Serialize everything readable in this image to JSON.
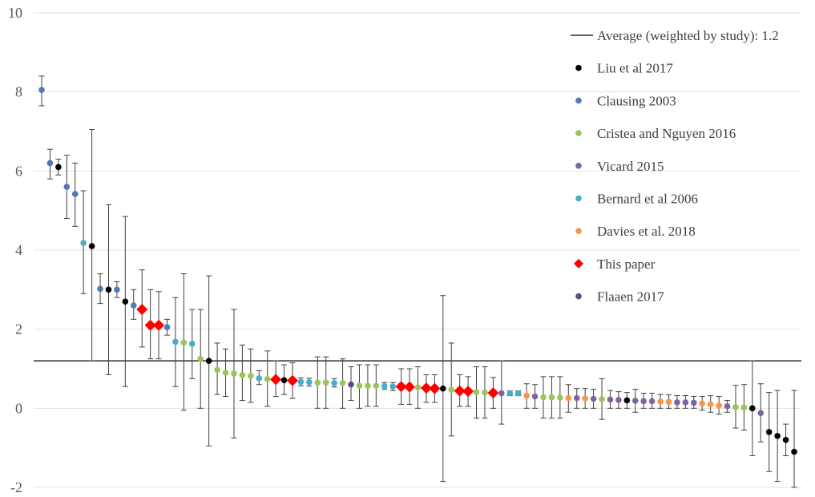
{
  "chart_data": {
    "type": "scatter",
    "title": "",
    "xlabel": "",
    "ylabel": "",
    "ylim": [
      -2,
      10
    ],
    "yticks": [
      -2,
      0,
      2,
      4,
      6,
      8,
      10
    ],
    "grid": true,
    "legend_position": "top-right",
    "reference_line": {
      "label": "Average (weighted by study): 1.2",
      "value": 1.2,
      "color": "#000000"
    },
    "series": [
      {
        "name": "Liu et al 2017",
        "color": "#000000",
        "marker": "circle"
      },
      {
        "name": "Clausing 2003",
        "color": "#4e7ab5",
        "marker": "circle"
      },
      {
        "name": "Cristea and Nguyen 2016",
        "color": "#9dc35a",
        "marker": "circle"
      },
      {
        "name": "Vicard 2015",
        "color": "#8064a2",
        "marker": "circle"
      },
      {
        "name": "Bernard et al 2006",
        "color": "#4bacc6",
        "marker": "circle"
      },
      {
        "name": "Davies et al. 2018",
        "color": "#f79646",
        "marker": "circle"
      },
      {
        "name": "This paper",
        "color": "#ff0000",
        "marker": "diamond"
      },
      {
        "name": "Flaaen 2017",
        "color": "#604a7b",
        "marker": "circle"
      }
    ],
    "points": [
      {
        "series": 1,
        "y": 8.05,
        "lo": 7.65,
        "hi": 8.4
      },
      {
        "series": 1,
        "y": 6.2,
        "lo": 5.8,
        "hi": 6.55
      },
      {
        "series": 0,
        "y": 6.1,
        "lo": 5.9,
        "hi": 6.3
      },
      {
        "series": 1,
        "y": 5.6,
        "lo": 4.8,
        "hi": 6.4
      },
      {
        "series": 1,
        "y": 5.42,
        "lo": 4.6,
        "hi": 6.2
      },
      {
        "series": 4,
        "y": 4.18,
        "lo": 2.9,
        "hi": 5.5
      },
      {
        "series": 0,
        "y": 4.1,
        "lo": 1.2,
        "hi": 7.05
      },
      {
        "series": 1,
        "y": 3.02,
        "lo": 2.65,
        "hi": 3.4
      },
      {
        "series": 0,
        "y": 3.0,
        "lo": 0.85,
        "hi": 5.15
      },
      {
        "series": 1,
        "y": 3.0,
        "lo": 2.8,
        "hi": 3.2
      },
      {
        "series": 0,
        "y": 2.7,
        "lo": 0.55,
        "hi": 4.85
      },
      {
        "series": 1,
        "y": 2.6,
        "lo": 2.25,
        "hi": 3.0
      },
      {
        "series": 6,
        "y": 2.5,
        "lo": 1.55,
        "hi": 3.5
      },
      {
        "series": 6,
        "y": 2.1,
        "lo": 1.25,
        "hi": 3.0
      },
      {
        "series": 6,
        "y": 2.1,
        "lo": 1.25,
        "hi": 2.95
      },
      {
        "series": 1,
        "y": 2.05,
        "lo": 1.85,
        "hi": 2.25
      },
      {
        "series": 4,
        "y": 1.68,
        "lo": 0.55,
        "hi": 2.8
      },
      {
        "series": 2,
        "y": 1.66,
        "lo": -0.05,
        "hi": 3.4
      },
      {
        "series": 4,
        "y": 1.63,
        "lo": 0.75,
        "hi": 2.5
      },
      {
        "series": 2,
        "y": 1.25,
        "lo": 0.0,
        "hi": 2.5
      },
      {
        "series": 0,
        "y": 1.2,
        "lo": -0.95,
        "hi": 3.35
      },
      {
        "series": 2,
        "y": 0.97,
        "lo": 0.35,
        "hi": 1.65
      },
      {
        "series": 2,
        "y": 0.9,
        "lo": 0.3,
        "hi": 1.5
      },
      {
        "series": 2,
        "y": 0.88,
        "lo": -0.75,
        "hi": 2.5
      },
      {
        "series": 2,
        "y": 0.84,
        "lo": 0.2,
        "hi": 1.6
      },
      {
        "series": 2,
        "y": 0.82,
        "lo": 0.15,
        "hi": 1.5
      },
      {
        "series": 4,
        "y": 0.76,
        "lo": 0.6,
        "hi": 0.95
      },
      {
        "series": 2,
        "y": 0.74,
        "lo": 0.05,
        "hi": 1.45
      },
      {
        "series": 6,
        "y": 0.73,
        "lo": 0.3,
        "hi": 1.2
      },
      {
        "series": 0,
        "y": 0.71,
        "lo": 0.35,
        "hi": 1.1
      },
      {
        "series": 6,
        "y": 0.7,
        "lo": 0.25,
        "hi": 1.15
      },
      {
        "series": 4,
        "y": 0.67,
        "lo": 0.57,
        "hi": 0.77
      },
      {
        "series": 4,
        "y": 0.66,
        "lo": 0.56,
        "hi": 0.76
      },
      {
        "series": 2,
        "y": 0.65,
        "lo": 0.0,
        "hi": 1.3
      },
      {
        "series": 2,
        "y": 0.65,
        "lo": 0.0,
        "hi": 1.3
      },
      {
        "series": 4,
        "y": 0.64,
        "lo": 0.54,
        "hi": 0.75
      },
      {
        "series": 2,
        "y": 0.64,
        "lo": 0.0,
        "hi": 1.25
      },
      {
        "series": 7,
        "y": 0.6,
        "lo": 0.2,
        "hi": 1.05
      },
      {
        "series": 2,
        "y": 0.57,
        "lo": 0.0,
        "hi": 1.1
      },
      {
        "series": 2,
        "y": 0.57,
        "lo": 0.05,
        "hi": 1.1
      },
      {
        "series": 2,
        "y": 0.57,
        "lo": 0.05,
        "hi": 1.1
      },
      {
        "series": 4,
        "y": 0.56,
        "lo": 0.48,
        "hi": 0.65
      },
      {
        "series": 4,
        "y": 0.55,
        "lo": 0.45,
        "hi": 0.65
      },
      {
        "series": 6,
        "y": 0.55,
        "lo": 0.1,
        "hi": 1.0
      },
      {
        "series": 6,
        "y": 0.54,
        "lo": 0.1,
        "hi": 1.0
      },
      {
        "series": 2,
        "y": 0.53,
        "lo": 0.0,
        "hi": 1.05
      },
      {
        "series": 6,
        "y": 0.51,
        "lo": 0.15,
        "hi": 0.85
      },
      {
        "series": 6,
        "y": 0.5,
        "lo": 0.15,
        "hi": 0.85
      },
      {
        "series": 0,
        "y": 0.5,
        "lo": -1.85,
        "hi": 2.85
      },
      {
        "series": 2,
        "y": 0.47,
        "lo": -0.7,
        "hi": 1.65
      },
      {
        "series": 6,
        "y": 0.44,
        "lo": 0.05,
        "hi": 0.85
      },
      {
        "series": 6,
        "y": 0.43,
        "lo": 0.05,
        "hi": 0.8
      },
      {
        "series": 2,
        "y": 0.41,
        "lo": -0.25,
        "hi": 1.05
      },
      {
        "series": 2,
        "y": 0.4,
        "lo": -0.25,
        "hi": 1.05
      },
      {
        "series": 6,
        "y": 0.39,
        "lo": 0.0,
        "hi": 0.78
      },
      {
        "series": 3,
        "y": 0.38,
        "lo": -0.4,
        "hi": 1.2
      },
      {
        "series": 4,
        "y": 0.38,
        "lo": 0.32,
        "hi": 0.44
      },
      {
        "series": 4,
        "y": 0.38,
        "lo": 0.32,
        "hi": 0.44
      },
      {
        "series": 5,
        "y": 0.32,
        "lo": 0.0,
        "hi": 0.62
      },
      {
        "series": 3,
        "y": 0.3,
        "lo": 0.0,
        "hi": 0.6
      },
      {
        "series": 2,
        "y": 0.28,
        "lo": -0.25,
        "hi": 0.8
      },
      {
        "series": 2,
        "y": 0.28,
        "lo": -0.25,
        "hi": 0.8
      },
      {
        "series": 2,
        "y": 0.27,
        "lo": -0.25,
        "hi": 0.8
      },
      {
        "series": 5,
        "y": 0.26,
        "lo": -0.1,
        "hi": 0.6
      },
      {
        "series": 3,
        "y": 0.26,
        "lo": 0.0,
        "hi": 0.5
      },
      {
        "series": 5,
        "y": 0.25,
        "lo": 0.0,
        "hi": 0.5
      },
      {
        "series": 3,
        "y": 0.24,
        "lo": 0.0,
        "hi": 0.48
      },
      {
        "series": 2,
        "y": 0.23,
        "lo": -0.28,
        "hi": 0.75
      },
      {
        "series": 3,
        "y": 0.22,
        "lo": 0.0,
        "hi": 0.45
      },
      {
        "series": 3,
        "y": 0.21,
        "lo": 0.0,
        "hi": 0.42
      },
      {
        "series": 0,
        "y": 0.2,
        "lo": 0.0,
        "hi": 0.4
      },
      {
        "series": 3,
        "y": 0.19,
        "lo": -0.1,
        "hi": 0.48
      },
      {
        "series": 3,
        "y": 0.18,
        "lo": 0.0,
        "hi": 0.38
      },
      {
        "series": 3,
        "y": 0.18,
        "lo": 0.0,
        "hi": 0.38
      },
      {
        "series": 5,
        "y": 0.17,
        "lo": 0.0,
        "hi": 0.35
      },
      {
        "series": 5,
        "y": 0.16,
        "lo": 0.0,
        "hi": 0.34
      },
      {
        "series": 3,
        "y": 0.15,
        "lo": 0.0,
        "hi": 0.32
      },
      {
        "series": 3,
        "y": 0.15,
        "lo": 0.0,
        "hi": 0.32
      },
      {
        "series": 3,
        "y": 0.14,
        "lo": 0.0,
        "hi": 0.3
      },
      {
        "series": 5,
        "y": 0.12,
        "lo": -0.05,
        "hi": 0.3
      },
      {
        "series": 5,
        "y": 0.1,
        "lo": -0.1,
        "hi": 0.32
      },
      {
        "series": 5,
        "y": 0.07,
        "lo": -0.15,
        "hi": 0.3
      },
      {
        "series": 3,
        "y": 0.05,
        "lo": -0.1,
        "hi": 0.2
      },
      {
        "series": 2,
        "y": 0.03,
        "lo": -0.5,
        "hi": 0.58
      },
      {
        "series": 2,
        "y": 0.02,
        "lo": -0.55,
        "hi": 0.6
      },
      {
        "series": 0,
        "y": 0.0,
        "lo": -1.2,
        "hi": 1.2
      },
      {
        "series": 3,
        "y": -0.12,
        "lo": -0.85,
        "hi": 0.62
      },
      {
        "series": 0,
        "y": -0.6,
        "lo": -1.6,
        "hi": 0.4
      },
      {
        "series": 0,
        "y": -0.7,
        "lo": -1.85,
        "hi": 0.45
      },
      {
        "series": 0,
        "y": -0.8,
        "lo": -1.2,
        "hi": -0.4
      },
      {
        "series": 0,
        "y": -1.1,
        "lo": -2.0,
        "hi": 0.45
      }
    ]
  }
}
